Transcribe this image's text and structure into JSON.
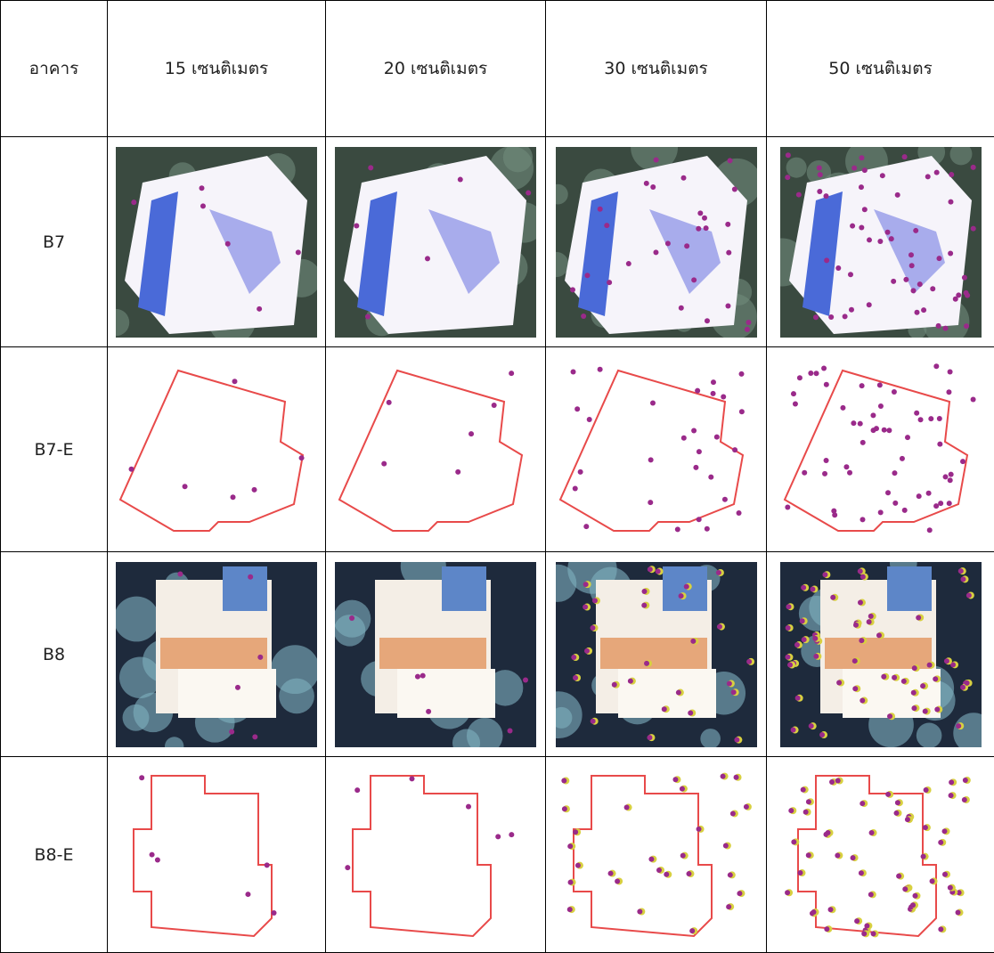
{
  "table": {
    "header": [
      "อาคาร",
      "15 เซนติเมตร",
      "20 เซนติเมตร",
      "30 เซนติเมตร",
      "50 เซนติเมตร"
    ],
    "rows": [
      [
        "B7"
      ],
      [
        "B7-E"
      ],
      [
        "B8"
      ],
      [
        "B8-E"
      ]
    ]
  }
}
